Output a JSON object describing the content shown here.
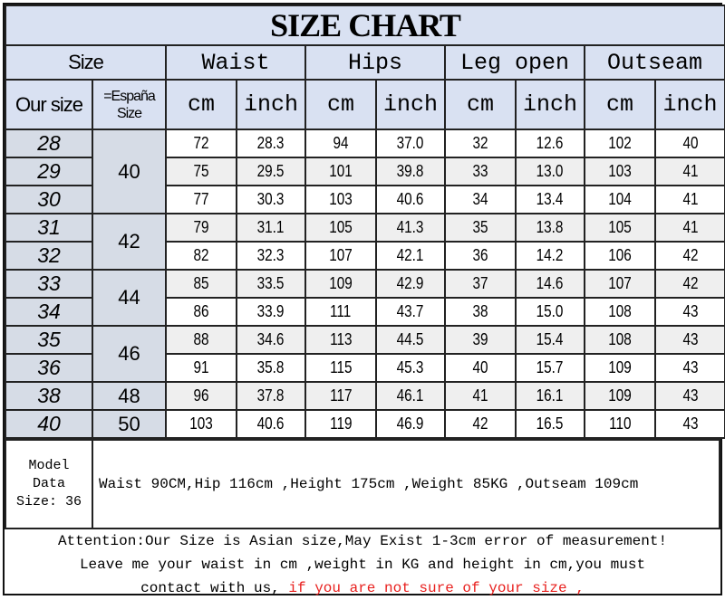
{
  "title": "SIZE CHART",
  "headers": {
    "size": "Size",
    "waist": "Waist",
    "hips": "Hips",
    "leg_open": "Leg open",
    "outseam": "Outseam",
    "our_size": "Our size",
    "espana_size": "=España Size",
    "cm": "cm",
    "inch": "inch"
  },
  "rows": [
    {
      "size": "28",
      "es": "40",
      "es_span": 3,
      "vals": [
        "72",
        "28.3",
        "94",
        "37.0",
        "32",
        "12.6",
        "102",
        "40"
      ]
    },
    {
      "size": "29",
      "vals": [
        "75",
        "29.5",
        "101",
        "39.8",
        "33",
        "13.0",
        "103",
        "41"
      ]
    },
    {
      "size": "30",
      "vals": [
        "77",
        "30.3",
        "103",
        "40.6",
        "34",
        "13.4",
        "104",
        "41"
      ]
    },
    {
      "size": "31",
      "es": "42",
      "es_span": 2,
      "vals": [
        "79",
        "31.1",
        "105",
        "41.3",
        "35",
        "13.8",
        "105",
        "41"
      ]
    },
    {
      "size": "32",
      "vals": [
        "82",
        "32.3",
        "107",
        "42.1",
        "36",
        "14.2",
        "106",
        "42"
      ]
    },
    {
      "size": "33",
      "es": "44",
      "es_span": 2,
      "vals": [
        "85",
        "33.5",
        "109",
        "42.9",
        "37",
        "14.6",
        "107",
        "42"
      ]
    },
    {
      "size": "34",
      "vals": [
        "86",
        "33.9",
        "111",
        "43.7",
        "38",
        "15.0",
        "108",
        "43"
      ]
    },
    {
      "size": "35",
      "es": "46",
      "es_span": 2,
      "vals": [
        "88",
        "34.6",
        "113",
        "44.5",
        "39",
        "15.4",
        "108",
        "43"
      ]
    },
    {
      "size": "36",
      "vals": [
        "91",
        "35.8",
        "115",
        "45.3",
        "40",
        "15.7",
        "109",
        "43"
      ]
    },
    {
      "size": "38",
      "es": "48",
      "es_span": 1,
      "vals": [
        "96",
        "37.8",
        "117",
        "46.1",
        "41",
        "16.1",
        "109",
        "43"
      ]
    },
    {
      "size": "40",
      "es": "50",
      "es_span": 1,
      "vals": [
        "103",
        "40.6",
        "119",
        "46.9",
        "42",
        "16.5",
        "110",
        "43"
      ]
    }
  ],
  "model": {
    "label_line1": "Model",
    "label_line2": "Data",
    "label_line3": "Size: 36",
    "text": "Waist 90CM,Hip 116cm ,Height 175cm ,Weight 85KG ,Outseam 109cm"
  },
  "attention": {
    "line1": "Attention:Our Size is Asian size,May Exist 1-3cm error of measurement!",
    "line2": "Leave me your waist in cm ,weight in KG and height in cm,you must",
    "line3": "contact with us,",
    "line3_red": " if you are not sure of your size ,"
  },
  "colors": {
    "header_bg": "#d9e1f2",
    "size_bg": "#d6dce6",
    "alt_row": "#efefef",
    "warning": "#e8201e"
  }
}
